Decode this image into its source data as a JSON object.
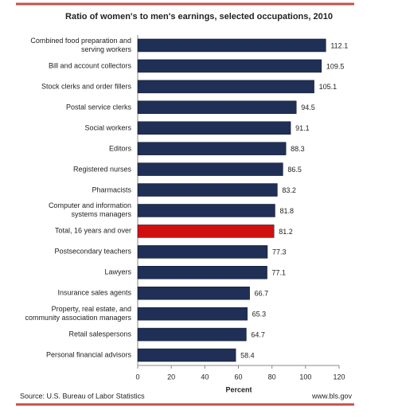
{
  "chart_data": {
    "type": "bar",
    "orientation": "horizontal",
    "title": "Ratio of women's to men's earnings, selected occupations, 2010",
    "categories": [
      "Combined food preparation and\nserving workers",
      "Bill and account collectors",
      "Stock clerks and order fillers",
      "Postal service clerks",
      "Social workers",
      "Editors",
      "Registered nurses",
      "Pharmacists",
      "Computer and information\nsystems managers",
      "Total, 16 years and over",
      "Postsecondary teachers",
      "Lawyers",
      "Insurance sales agents",
      "Property, real estate, and\ncommunity association managers",
      "Retail salespersons",
      "Personal financial advisors"
    ],
    "values": [
      112.1,
      109.5,
      105.1,
      94.5,
      91.1,
      88.3,
      86.5,
      83.2,
      81.8,
      81.2,
      77.3,
      77.1,
      66.7,
      65.3,
      64.7,
      58.4
    ],
    "colors": [
      "#1f2f55",
      "#1f2f55",
      "#1f2f55",
      "#1f2f55",
      "#1f2f55",
      "#1f2f55",
      "#1f2f55",
      "#1f2f55",
      "#1f2f55",
      "#d01010",
      "#1f2f55",
      "#1f2f55",
      "#1f2f55",
      "#1f2f55",
      "#1f2f55",
      "#1f2f55"
    ],
    "xlim": [
      0,
      120
    ],
    "xticks": [
      0,
      20,
      40,
      60,
      80,
      100,
      120
    ],
    "xlabel": "Percent",
    "source": "Source: U.S. Bureau of Labor Statistics",
    "url": "www.bls.gov",
    "rule_color": "#c0504d"
  }
}
